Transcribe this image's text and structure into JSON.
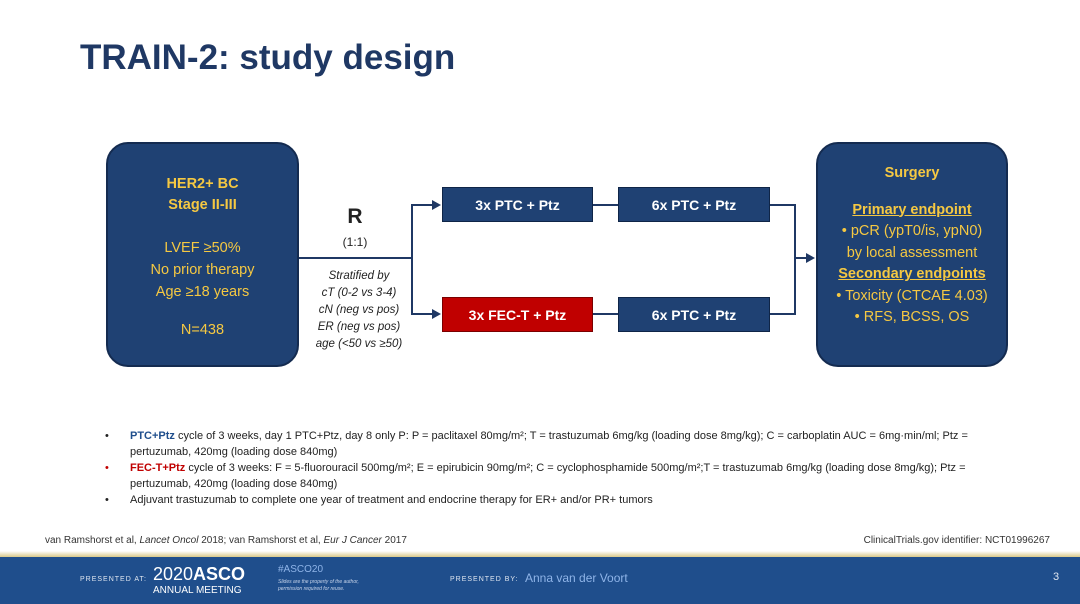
{
  "title": "TRAIN-2: study design",
  "population": {
    "line1": "HER2+ BC",
    "line2": "Stage II-III",
    "criteria": [
      "LVEF ≥50%",
      "No prior therapy",
      "Age ≥18 years"
    ],
    "n": "N=438"
  },
  "randomization": {
    "label": "R",
    "ratio": "(1:1)"
  },
  "stratification": {
    "heading": "Stratified by",
    "factors": [
      "cT (0-2 vs 3-4)",
      "cN (neg vs pos)",
      "ER (neg vs pos)",
      "age (<50 vs ≥50)"
    ]
  },
  "arms": [
    {
      "first": "3x PTC + Ptz",
      "second": "6x PTC + Ptz",
      "first_color": "#1f4173"
    },
    {
      "first": "3x FEC-T + Ptz",
      "second": "6x PTC + Ptz",
      "first_color": "#c00000"
    }
  ],
  "outcome": {
    "title": "Surgery",
    "primary_heading": "Primary endpoint",
    "primary": [
      "• pCR (ypT0/is, ypN0)",
      "by local assessment"
    ],
    "secondary_heading": "Secondary endpoints",
    "secondary": [
      "• Toxicity (CTCAE 4.03)",
      "• RFS, BCSS, OS"
    ]
  },
  "notes": [
    {
      "bullet": "•",
      "lead": "PTC+Ptz",
      "lead_color": "#1f4e8c",
      "text": " cycle of 3 weeks, day 1 PTC+Ptz, day 8 only P: P = paclitaxel 80mg/m²; T = trastuzumab 6mg/kg (loading dose 8mg/kg); C = carboplatin AUC = 6mg·min/ml; Ptz = pertuzumab, 420mg (loading dose 840mg)"
    },
    {
      "bullet": "•",
      "lead": "FEC-T+Ptz",
      "lead_color": "#c00000",
      "text": " cycle of 3 weeks: F = 5-fluorouracil 500mg/m²; E = epirubicin 90mg/m²; C = cyclophosphamide 500mg/m²;T = trastuzumab 6mg/kg (loading dose 8mg/kg); Ptz = pertuzumab, 420mg (loading dose 840mg)"
    },
    {
      "bullet": "•",
      "lead": "",
      "text": "Adjuvant trastuzumab to complete one year of treatment and endocrine therapy for ER+ and/or PR+ tumors"
    }
  ],
  "references": {
    "left_a": "van Ramshorst et al, ",
    "left_b": "Lancet Oncol",
    "left_c": " 2018; van Ramshorst et al, ",
    "left_d": "Eur J Cancer",
    "left_e": " 2017",
    "right": "ClinicalTrials.gov identifier: NCT01996267"
  },
  "footer": {
    "presented_at": "PRESENTED AT:",
    "logo_year": "2020",
    "logo_brand": "ASCO",
    "logo_sub": "ANNUAL MEETING",
    "hashtag": "#ASCO20",
    "disclaimer1": "Slides are the property of the author,",
    "disclaimer2": "permission required for reuse.",
    "presented_by": "PRESENTED BY:",
    "presenter": "Anna van der Voort",
    "page": "3"
  }
}
